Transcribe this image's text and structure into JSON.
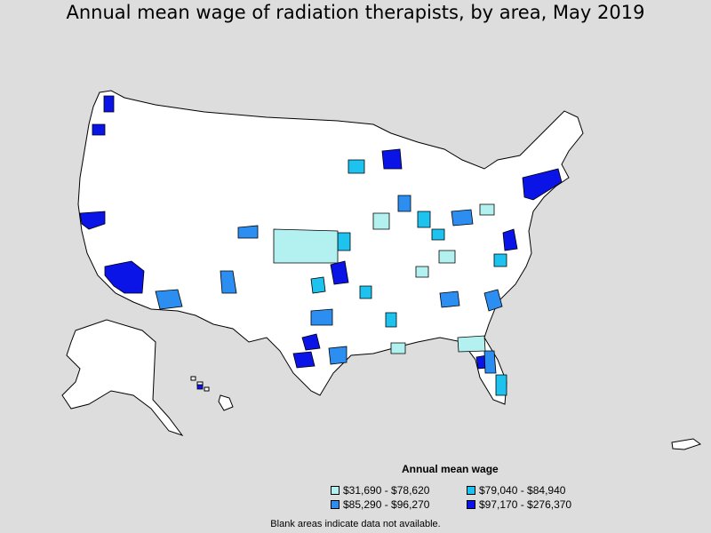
{
  "title": "Annual mean wage of radiation therapists, by area, May 2019",
  "legend": {
    "title": "Annual mean wage",
    "items": [
      {
        "label": "$31,690 - $78,620",
        "color": "#b3f0f0"
      },
      {
        "label": "$79,040 - $84,940",
        "color": "#1ec2ee"
      },
      {
        "label": "$85,290 - $96,270",
        "color": "#2b8ef0"
      },
      {
        "label": "$97,170 - $276,370",
        "color": "#0a14e6"
      }
    ]
  },
  "note": "Blank areas indicate data not available.",
  "colors": {
    "background": "#dddddd",
    "land": "#ffffff",
    "border": "#000000"
  }
}
